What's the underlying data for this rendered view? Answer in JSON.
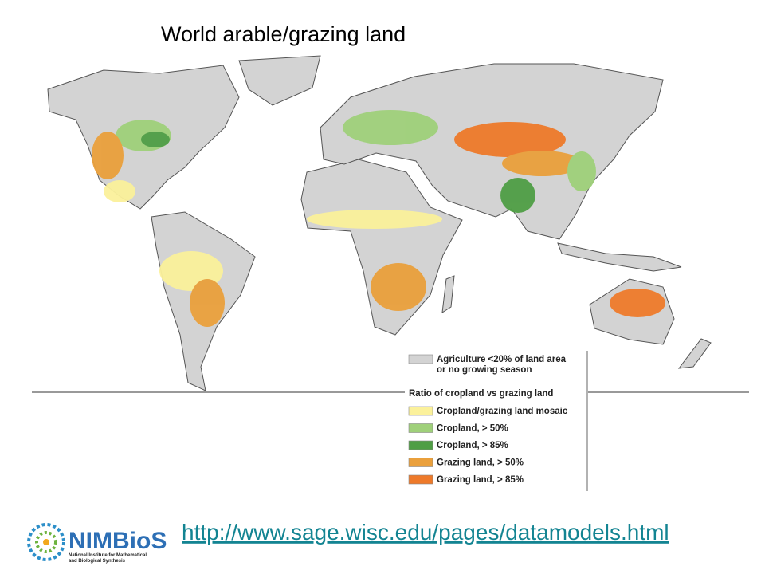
{
  "title": "World arable/grazing land",
  "legend": {
    "items": [
      {
        "lines": [
          "Agriculture <20% of land area",
          "or no growing season"
        ],
        "color": "#d3d3d3"
      }
    ],
    "heading": "Ratio of cropland vs grazing land",
    "ratio_items": [
      {
        "label": "Cropland/grazing land mosaic",
        "color": "#fbf19b"
      },
      {
        "label": "Cropland, > 50%",
        "color": "#9fd07a"
      },
      {
        "label": "Cropland, > 85%",
        "color": "#4f9e45"
      },
      {
        "label": "Grazing land, > 50%",
        "color": "#eaa03c"
      },
      {
        "label": "Grazing land, > 85%",
        "color": "#ee7a2a"
      }
    ]
  },
  "url": "http://www.sage.wisc.edu/pages/datamodels.html",
  "logo": {
    "name": "NIMBioS",
    "subtitle": [
      "National Institute for Mathematical",
      "and Biological Synthesis"
    ]
  }
}
